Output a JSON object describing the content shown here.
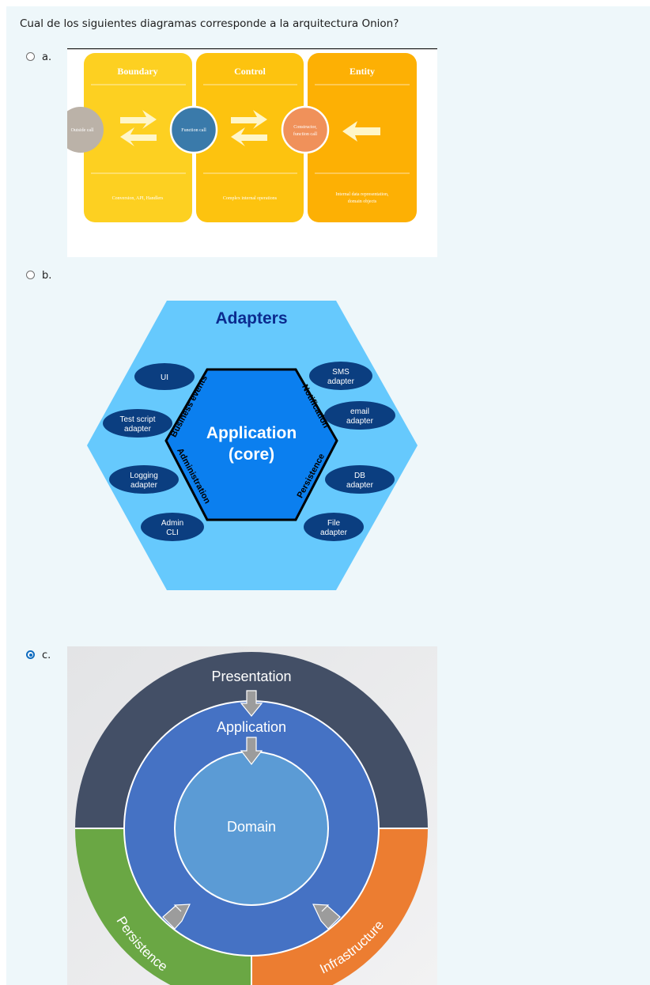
{
  "question": "Cual de los siguientes diagramas corresponde a la arquitectura Onion?",
  "options": [
    {
      "label": "a.",
      "selected": false
    },
    {
      "label": "b.",
      "selected": false
    },
    {
      "label": "c.",
      "selected": true
    }
  ],
  "diagram_a": {
    "columns": [
      {
        "title": "Boundary",
        "caption": "Conversion, API, Handlers",
        "color": "#fdd021"
      },
      {
        "title": "Control",
        "caption": "Complex internal operations",
        "color": "#fdc30f"
      },
      {
        "title": "Entity",
        "caption_line1": "Internal data representation,",
        "caption_line2": "domain objects",
        "color": "#fdb004"
      }
    ],
    "circles": {
      "outside": "Outside call",
      "function": "Function call",
      "constructor_line1": "Constructor,",
      "constructor_line2": "function call"
    }
  },
  "diagram_b": {
    "title": "Adapters",
    "core_line1": "Application",
    "core_line2": "(core)",
    "ports": {
      "top_left": "Business events",
      "top_right": "Notification",
      "bottom_left": "Administration",
      "bottom_right": "Persistence"
    },
    "adapters": {
      "ui": "UI",
      "test_1": "Test script",
      "test_2": "adapter",
      "logging_1": "Logging",
      "logging_2": "adapter",
      "admin_1": "Admin",
      "admin_2": "CLI",
      "sms_1": "SMS",
      "sms_2": "adapter",
      "email_1": "email",
      "email_2": "adapter",
      "db_1": "DB",
      "db_2": "adapter",
      "file_1": "File",
      "file_2": "adapter"
    }
  },
  "diagram_c": {
    "presentation": "Presentation",
    "application": "Application",
    "domain": "Domain",
    "persistence": "Persistence",
    "infrastructure": "Infrastructure"
  }
}
